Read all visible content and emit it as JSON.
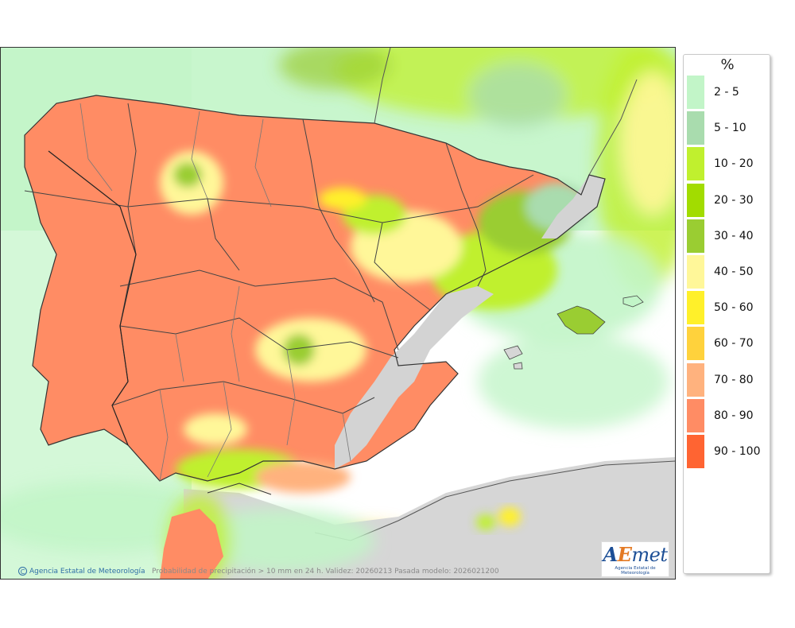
{
  "map": {
    "credit": "Agencia Estatal de Meteorología",
    "copyright_symbol": "C",
    "caption": "Probabilidad de precipitación > 10 mm en 24 h. Validez: 20260213 Pasada modelo: 2026021200",
    "logo": {
      "letter_a": "A",
      "letter_e": "E",
      "rest": "met",
      "subtitle": "Agencia Estatal de Meteorología"
    }
  },
  "legend": {
    "title": "%",
    "items": [
      {
        "label": "2 - 5",
        "color": "#c2f5c8"
      },
      {
        "label": "5 - 10",
        "color": "#a9dcae"
      },
      {
        "label": "10 - 20",
        "color": "#c0f02e"
      },
      {
        "label": "20 - 30",
        "color": "#a2dc00"
      },
      {
        "label": "30 - 40",
        "color": "#9acd32"
      },
      {
        "label": "40 - 50",
        "color": "#fff799"
      },
      {
        "label": "50 - 60",
        "color": "#fff02a"
      },
      {
        "label": "60 - 70",
        "color": "#ffd23c"
      },
      {
        "label": "70 - 80",
        "color": "#ffb27e"
      },
      {
        "label": "80 - 90",
        "color": "#ff8c64"
      },
      {
        "label": "90 - 100",
        "color": "#ff6432"
      }
    ]
  }
}
